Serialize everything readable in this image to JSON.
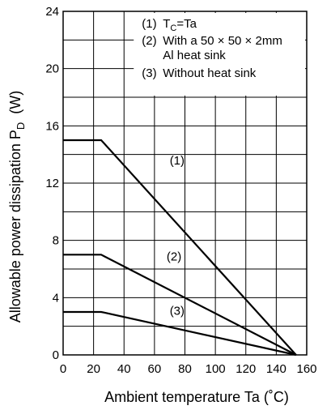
{
  "chart_data": {
    "type": "line",
    "xlabel": "Ambient temperature   Ta   (˚C)",
    "ylabel_main": "Allowable power dissipation   P",
    "ylabel_sub": "D",
    "ylabel_unit": "(W)",
    "xlim": [
      0,
      160
    ],
    "ylim": [
      0,
      24
    ],
    "x_ticks": [
      "0",
      "20",
      "40",
      "60",
      "80",
      "100",
      "120",
      "140",
      "160"
    ],
    "y_ticks": [
      "0",
      "4",
      "8",
      "12",
      "16",
      "20",
      "24"
    ],
    "x_grid_step": 20,
    "y_grid_step": 2,
    "grid": true,
    "legend": {
      "placement": "top-right",
      "items": [
        {
          "marker": "(1)",
          "parts": [
            [
              "T",
              ""
            ],
            [
              "C",
              "sub"
            ],
            [
              "=Ta",
              ""
            ]
          ]
        },
        {
          "marker": "(2)",
          "parts": [
            [
              "With a 50 × 50 × 2mm",
              ""
            ]
          ]
        },
        {
          "marker": "",
          "parts": [
            [
              "Al heat sink",
              ""
            ]
          ]
        },
        {
          "marker": "(3)",
          "parts": [
            [
              "Without heat sink",
              ""
            ]
          ]
        }
      ]
    },
    "series": [
      {
        "label": "(1)",
        "x": [
          0,
          25,
          153
        ],
        "y": [
          15,
          15,
          0
        ],
        "label_at": [
          70,
          13.3
        ]
      },
      {
        "label": "(2)",
        "x": [
          0,
          25,
          153
        ],
        "y": [
          7,
          7,
          0
        ],
        "label_at": [
          68,
          6.6
        ]
      },
      {
        "label": "(3)",
        "x": [
          0,
          25,
          153
        ],
        "y": [
          3,
          3,
          0
        ],
        "label_at": [
          70,
          2.8
        ]
      }
    ]
  }
}
